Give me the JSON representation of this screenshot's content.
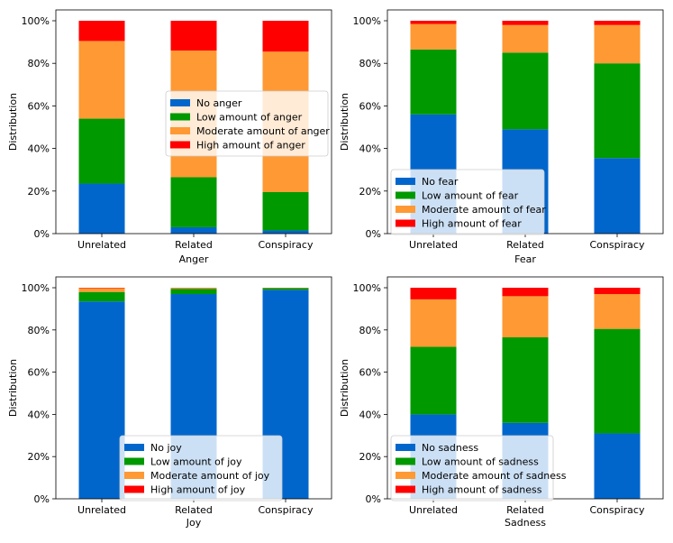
{
  "colors": {
    "none": "#0066cc",
    "low": "#009900",
    "moderate": "#ff9933",
    "high": "#ff0000"
  },
  "chart_data": [
    {
      "type": "bar",
      "stacked": true,
      "xlabel": "Anger",
      "ylabel": "Distribution",
      "ylim": [
        0,
        100
      ],
      "y_ticks": [
        "0%",
        "20%",
        "40%",
        "60%",
        "80%",
        "100%"
      ],
      "categories": [
        "Unrelated",
        "Related",
        "Conspiracy"
      ],
      "legend_position": "center-right",
      "series": [
        {
          "name": "No anger",
          "values": [
            23.5,
            3,
            1.5
          ]
        },
        {
          "name": "Low amount of anger",
          "values": [
            30.5,
            23.5,
            18
          ]
        },
        {
          "name": "Moderate amount of anger",
          "values": [
            36.5,
            59.5,
            66
          ]
        },
        {
          "name": "High amount of anger",
          "values": [
            9.5,
            14,
            14.5
          ]
        }
      ]
    },
    {
      "type": "bar",
      "stacked": true,
      "xlabel": "Fear",
      "ylabel": "Distribution",
      "ylim": [
        0,
        100
      ],
      "y_ticks": [
        "0%",
        "20%",
        "40%",
        "60%",
        "80%",
        "100%"
      ],
      "categories": [
        "Unrelated",
        "Related",
        "Conspiracy"
      ],
      "legend_position": "lower-left",
      "series": [
        {
          "name": "No fear",
          "values": [
            56,
            49,
            35.5
          ]
        },
        {
          "name": "Low amount of fear",
          "values": [
            30.5,
            36,
            44.5
          ]
        },
        {
          "name": "Moderate amount of fear",
          "values": [
            12,
            13,
            18
          ]
        },
        {
          "name": "High amount of fear",
          "values": [
            1.5,
            2,
            2
          ]
        }
      ]
    },
    {
      "type": "bar",
      "stacked": true,
      "xlabel": "Joy",
      "ylabel": "Distribution",
      "ylim": [
        0,
        100
      ],
      "y_ticks": [
        "0%",
        "20%",
        "40%",
        "60%",
        "80%",
        "100%"
      ],
      "categories": [
        "Unrelated",
        "Related",
        "Conspiracy"
      ],
      "legend_position": "lower-center",
      "series": [
        {
          "name": "No joy",
          "values": [
            93.5,
            97,
            99
          ]
        },
        {
          "name": "Low amount of joy",
          "values": [
            4.5,
            2.5,
            0.8
          ]
        },
        {
          "name": "Moderate amount of joy",
          "values": [
            1.8,
            0.4,
            0.15
          ]
        },
        {
          "name": "High amount of joy",
          "values": [
            0.2,
            0.1,
            0.05
          ]
        }
      ]
    },
    {
      "type": "bar",
      "stacked": true,
      "xlabel": "Sadness",
      "ylabel": "Distribution",
      "ylim": [
        0,
        100
      ],
      "y_ticks": [
        "0%",
        "20%",
        "40%",
        "60%",
        "80%",
        "100%"
      ],
      "categories": [
        "Unrelated",
        "Related",
        "Conspiracy"
      ],
      "legend_position": "lower-left",
      "series": [
        {
          "name": "No sadness",
          "values": [
            40,
            36,
            31
          ]
        },
        {
          "name": "Low amount of sadness",
          "values": [
            32,
            40.5,
            49.5
          ]
        },
        {
          "name": "Moderate amount of sadness",
          "values": [
            22.5,
            19.5,
            16.5
          ]
        },
        {
          "name": "High amount of sadness",
          "values": [
            5.5,
            4,
            3
          ]
        }
      ]
    }
  ]
}
